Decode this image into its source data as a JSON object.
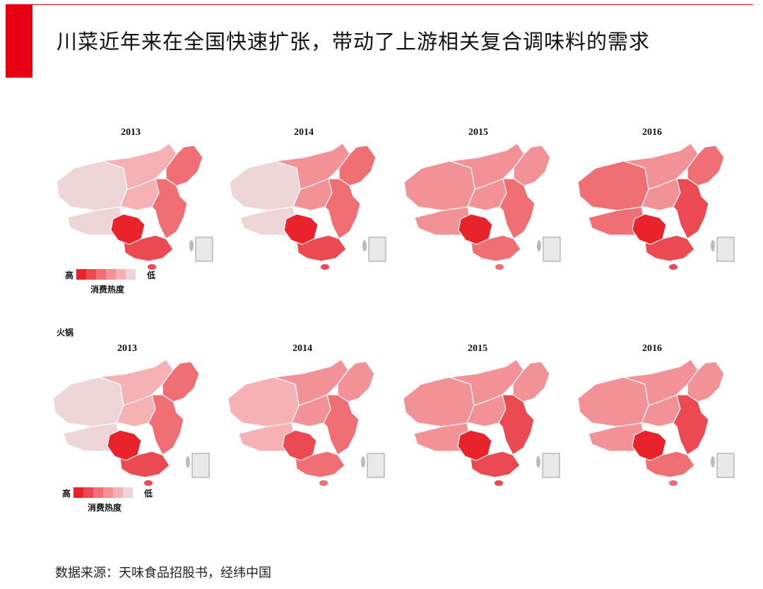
{
  "title": "川菜近年来在全国快速扩张，带动了上游相关复合调味料的需求",
  "colors": {
    "accent": "#e60012",
    "scale": [
      "#e8232c",
      "#eb4a52",
      "#ef6f74",
      "#f29196",
      "#f5b1b4",
      "#eed6d8"
    ]
  },
  "rows": [
    {
      "label": "",
      "maps": [
        {
          "year": "2013",
          "sichuan": 0,
          "east": 2,
          "northeast": 2,
          "north": 4,
          "south": 1,
          "west": 5
        },
        {
          "year": "2014",
          "sichuan": 0,
          "east": 2,
          "northeast": 2,
          "north": 3,
          "south": 1,
          "west": 5
        },
        {
          "year": "2015",
          "sichuan": 0,
          "east": 2,
          "northeast": 3,
          "north": 3,
          "south": 2,
          "west": 3
        },
        {
          "year": "2016",
          "sichuan": 0,
          "east": 1,
          "northeast": 2,
          "north": 3,
          "south": 1,
          "west": 2
        }
      ],
      "legend": {
        "high": "高",
        "low": "低",
        "caption": "消费热度"
      }
    },
    {
      "label": "火锅",
      "maps": [
        {
          "year": "2013",
          "sichuan": 0,
          "east": 2,
          "northeast": 2,
          "north": 4,
          "south": 1,
          "west": 5
        },
        {
          "year": "2014",
          "sichuan": 1,
          "east": 2,
          "northeast": 3,
          "north": 3,
          "south": 2,
          "west": 4
        },
        {
          "year": "2015",
          "sichuan": 0,
          "east": 1,
          "northeast": 3,
          "north": 3,
          "south": 1,
          "west": 3
        },
        {
          "year": "2016",
          "sichuan": 0,
          "east": 1,
          "northeast": 3,
          "north": 3,
          "south": 2,
          "west": 3
        }
      ],
      "legend": {
        "high": "高",
        "low": "低",
        "caption": "消费热度"
      }
    }
  ],
  "source": "数据来源：天味食品招股书，经纬中国"
}
